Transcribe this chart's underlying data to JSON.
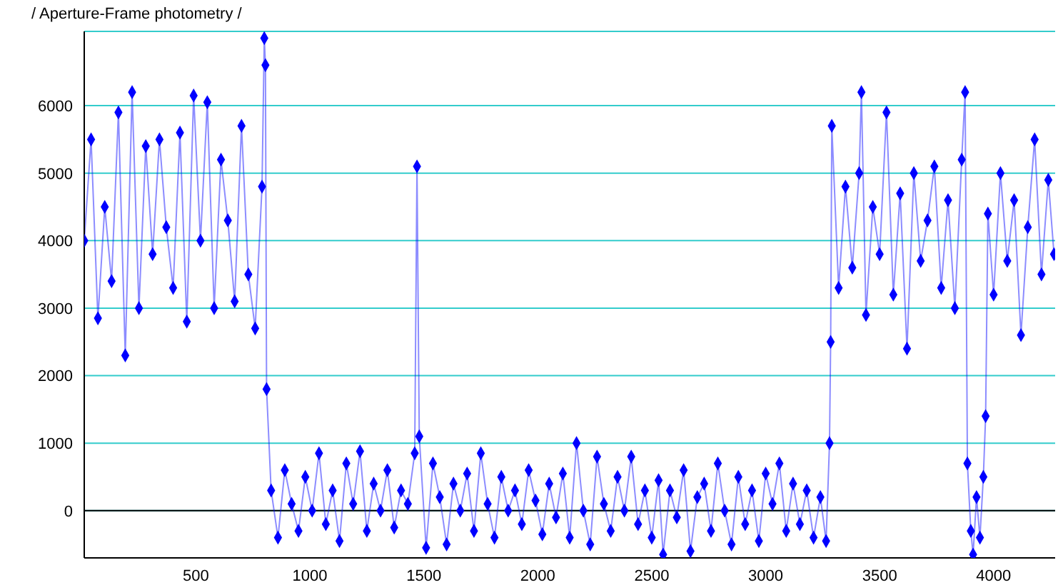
{
  "chart_data": {
    "type": "line",
    "title": "/ Aperture-Frame photometry /",
    "x": [
      10,
      40,
      70,
      100,
      130,
      160,
      190,
      220,
      250,
      280,
      310,
      340,
      370,
      400,
      430,
      460,
      490,
      520,
      550,
      580,
      610,
      640,
      670,
      700,
      730,
      760,
      790,
      800,
      805,
      810,
      830,
      860,
      890,
      920,
      950,
      980,
      1010,
      1040,
      1070,
      1100,
      1130,
      1160,
      1190,
      1220,
      1250,
      1280,
      1310,
      1340,
      1370,
      1400,
      1430,
      1460,
      1470,
      1480,
      1510,
      1540,
      1570,
      1600,
      1630,
      1660,
      1690,
      1720,
      1750,
      1780,
      1810,
      1840,
      1870,
      1900,
      1930,
      1960,
      1990,
      2020,
      2050,
      2080,
      2110,
      2140,
      2170,
      2200,
      2230,
      2260,
      2290,
      2320,
      2350,
      2380,
      2410,
      2440,
      2470,
      2500,
      2530,
      2550,
      2580,
      2610,
      2640,
      2670,
      2700,
      2730,
      2760,
      2790,
      2820,
      2850,
      2880,
      2910,
      2940,
      2970,
      3000,
      3030,
      3060,
      3090,
      3120,
      3150,
      3180,
      3210,
      3240,
      3265,
      3280,
      3285,
      3290,
      3320,
      3350,
      3380,
      3410,
      3420,
      3440,
      3470,
      3500,
      3530,
      3560,
      3590,
      3620,
      3650,
      3680,
      3710,
      3740,
      3770,
      3800,
      3830,
      3860,
      3875,
      3885,
      3900,
      3910,
      3925,
      3940,
      3955,
      3965,
      3975,
      4000,
      4030,
      4060,
      4090,
      4120,
      4150,
      4180,
      4210,
      4240,
      4265
    ],
    "series": [
      {
        "color": "#0000ff",
        "values": [
          4000,
          5500,
          2850,
          4500,
          3400,
          5900,
          2300,
          6200,
          3000,
          5400,
          3800,
          5500,
          4200,
          3300,
          5600,
          2800,
          6150,
          4000,
          6050,
          3000,
          5200,
          4300,
          3100,
          5700,
          3500,
          2700,
          4800,
          7000,
          6600,
          1800,
          300,
          -400,
          600,
          100,
          -300,
          500,
          0,
          850,
          -200,
          300,
          -450,
          700,
          100,
          880,
          -300,
          400,
          0,
          600,
          -250,
          300,
          100,
          850,
          5100,
          1100,
          -550,
          700,
          200,
          -500,
          400,
          0,
          550,
          -300,
          850,
          100,
          -400,
          500,
          0,
          300,
          -200,
          600,
          150,
          -350,
          400,
          -100,
          550,
          -400,
          1000,
          0,
          -500,
          800,
          100,
          -300,
          500,
          0,
          800,
          -200,
          300,
          -400,
          450,
          -650,
          300,
          -100,
          600,
          -600,
          200,
          400,
          -300,
          700,
          0,
          -500,
          500,
          -200,
          300,
          -450,
          550,
          100,
          700,
          -300,
          400,
          -200,
          300,
          -400,
          200,
          -450,
          1000,
          2500,
          5700,
          3300,
          4800,
          3600,
          5000,
          6200,
          2900,
          4500,
          3800,
          5900,
          3200,
          4700,
          2400,
          5000,
          3700,
          4300,
          5100,
          3300,
          4600,
          3000,
          5200,
          6200,
          700,
          -300,
          -650,
          200,
          -400,
          500,
          1400,
          4400,
          3200,
          5000,
          3700,
          4600,
          2600,
          4200,
          5500,
          3500,
          4900,
          3800
        ]
      }
    ],
    "xlim": [
      10,
      4270
    ],
    "xticks": [
      500,
      1000,
      1500,
      2000,
      2500,
      3000,
      3500,
      4000
    ],
    "ylim": [
      -700,
      7100
    ],
    "yticks": [
      0,
      1000,
      2000,
      3000,
      4000,
      5000,
      6000
    ],
    "grid": "y",
    "marker": "diamond",
    "line_style": "solid",
    "ref_lines": [
      {
        "axis": "y",
        "value": 0,
        "color": "#000000"
      }
    ]
  }
}
